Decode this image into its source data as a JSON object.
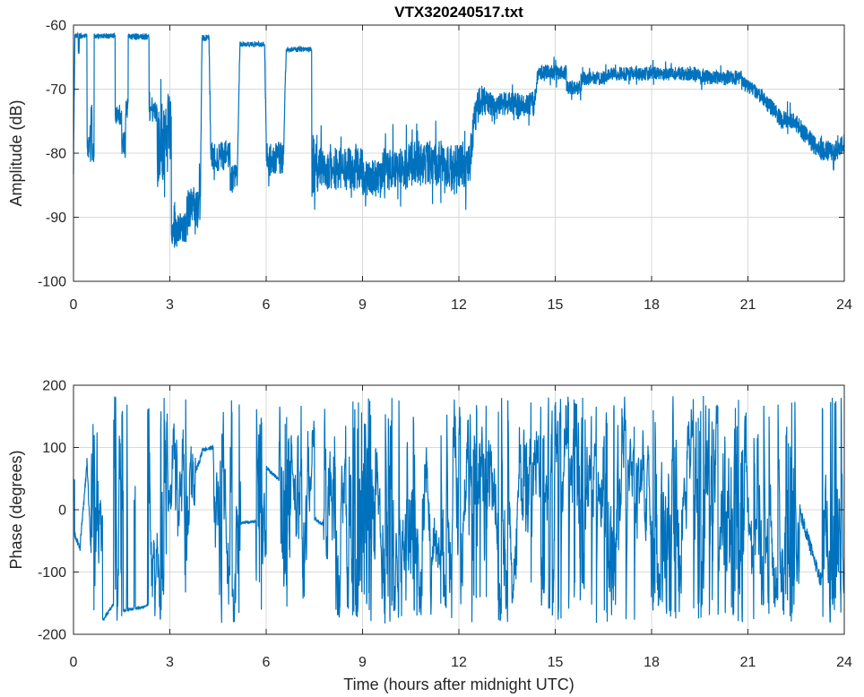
{
  "figure": {
    "window_title": "VTX320240517.txt",
    "background": "#ffffff",
    "axis_color": "#262626",
    "grid_color": "#d9d9d9",
    "line_color": "#0072BD",
    "tick_length": 6
  },
  "chart_data": [
    {
      "type": "line",
      "title": "VTX320240517.txt",
      "xlabel": "",
      "ylabel": "Amplitude (dB)",
      "xlim": [
        0,
        24
      ],
      "ylim": [
        -100,
        -60
      ],
      "xticks": [
        0,
        3,
        6,
        9,
        12,
        15,
        18,
        21,
        24
      ],
      "yticks": [
        -100,
        -90,
        -80,
        -70,
        -60
      ],
      "grid": true,
      "legend": null,
      "series": [
        {
          "name": "amplitude",
          "color": "#0072BD",
          "description": "VLF transmitter amplitude vs time; plateaus near -62 dB before 07:30 UTC, noisy -82 dB band 07:30-12:30, step to -72 dB, high band near -68 dB 14:30-21:00, decline to -80 dB by 24:00",
          "segments": [
            {
              "t0": 0.0,
              "t1": 0.04,
              "kind": "ramp",
              "from": -82,
              "to": -62,
              "spread": 1.5
            },
            {
              "t0": 0.04,
              "t1": 0.15,
              "kind": "plateau",
              "level": -61.7,
              "jit": 0.4
            },
            {
              "t0": 0.15,
              "t1": 0.18,
              "kind": "band",
              "mean": -63.5,
              "spread": 1.5
            },
            {
              "t0": 0.18,
              "t1": 0.42,
              "kind": "plateau",
              "level": -61.7,
              "jit": 0.4
            },
            {
              "t0": 0.42,
              "t1": 0.54,
              "kind": "band",
              "mean": -79.5,
              "spread": 2.2
            },
            {
              "t0": 0.54,
              "t1": 0.58,
              "kind": "band",
              "mean": -73.5,
              "spread": 1.2
            },
            {
              "t0": 0.58,
              "t1": 0.64,
              "kind": "band",
              "mean": -79.5,
              "spread": 2.2
            },
            {
              "t0": 0.64,
              "t1": 1.3,
              "kind": "plateau",
              "level": -61.7,
              "jit": 0.4
            },
            {
              "t0": 1.3,
              "t1": 1.5,
              "kind": "band",
              "mean": -74.0,
              "spread": 1.6
            },
            {
              "t0": 1.5,
              "t1": 1.62,
              "kind": "band",
              "mean": -78.5,
              "spread": 2.0
            },
            {
              "t0": 1.62,
              "t1": 1.7,
              "kind": "band",
              "mean": -72.5,
              "spread": 2.0
            },
            {
              "t0": 1.7,
              "t1": 2.35,
              "kind": "plateau",
              "level": -61.8,
              "jit": 0.5
            },
            {
              "t0": 2.35,
              "t1": 2.6,
              "kind": "band",
              "mean": -73.5,
              "spread": 1.6
            },
            {
              "t0": 2.6,
              "t1": 2.82,
              "kind": "band",
              "mean": -78.0,
              "spread": 6.5
            },
            {
              "t0": 2.82,
              "t1": 3.05,
              "kind": "band",
              "mean": -75.5,
              "spread": 5.5
            },
            {
              "t0": 3.05,
              "t1": 3.55,
              "kind": "band",
              "mean": -91.5,
              "spread": 2.4
            },
            {
              "t0": 3.55,
              "t1": 3.95,
              "kind": "band",
              "mean": -88.5,
              "spread": 3.3
            },
            {
              "t0": 3.95,
              "t1": 4.0,
              "kind": "ramp",
              "from": -88,
              "to": -62,
              "spread": 1.0
            },
            {
              "t0": 4.0,
              "t1": 4.22,
              "kind": "plateau",
              "level": -62.0,
              "jit": 0.5
            },
            {
              "t0": 4.22,
              "t1": 4.28,
              "kind": "ramp",
              "from": -62,
              "to": -81,
              "spread": 1.5
            },
            {
              "t0": 4.28,
              "t1": 4.88,
              "kind": "band",
              "mean": -80.5,
              "spread": 2.4
            },
            {
              "t0": 4.88,
              "t1": 5.1,
              "kind": "band",
              "mean": -84.0,
              "spread": 2.2
            },
            {
              "t0": 5.1,
              "t1": 5.18,
              "kind": "ramp",
              "from": -84,
              "to": -63,
              "spread": 1.0
            },
            {
              "t0": 5.18,
              "t1": 5.95,
              "kind": "plateau",
              "level": -63.0,
              "jit": 0.4
            },
            {
              "t0": 5.95,
              "t1": 6.0,
              "kind": "ramp",
              "from": -63,
              "to": -78,
              "spread": 1.0
            },
            {
              "t0": 6.0,
              "t1": 6.55,
              "kind": "band",
              "mean": -81.0,
              "spread": 2.8
            },
            {
              "t0": 6.55,
              "t1": 6.62,
              "kind": "ramp",
              "from": -78,
              "to": -64,
              "spread": 1.0
            },
            {
              "t0": 6.62,
              "t1": 7.42,
              "kind": "plateau",
              "level": -63.8,
              "jit": 0.4
            },
            {
              "t0": 7.42,
              "t1": 7.55,
              "kind": "band",
              "mean": -82.0,
              "spread": 5.0
            },
            {
              "t0": 7.55,
              "t1": 9.0,
              "kind": "band",
              "mean": -82.5,
              "spread": 3.4
            },
            {
              "t0": 9.0,
              "t1": 9.6,
              "kind": "band",
              "mean": -84.0,
              "spread": 3.0
            },
            {
              "t0": 9.6,
              "t1": 10.4,
              "kind": "band",
              "mean": -82.5,
              "spread": 3.4
            },
            {
              "t0": 10.4,
              "t1": 11.5,
              "kind": "band",
              "mean": -81.5,
              "spread": 3.6
            },
            {
              "t0": 11.5,
              "t1": 12.35,
              "kind": "band",
              "mean": -82.0,
              "spread": 3.3
            },
            {
              "t0": 12.35,
              "t1": 12.55,
              "kind": "ramp",
              "from": -80,
              "to": -73,
              "spread": 3.0
            },
            {
              "t0": 12.55,
              "t1": 12.95,
              "kind": "band",
              "mean": -71.8,
              "spread": 2.4
            },
            {
              "t0": 12.95,
              "t1": 14.35,
              "kind": "band",
              "mean": -72.3,
              "spread": 1.9
            },
            {
              "t0": 14.35,
              "t1": 14.45,
              "kind": "ramp",
              "from": -72,
              "to": -68,
              "spread": 1.2
            },
            {
              "t0": 14.45,
              "t1": 15.35,
              "kind": "band",
              "mean": -67.4,
              "spread": 1.2
            },
            {
              "t0": 15.35,
              "t1": 15.8,
              "kind": "band",
              "mean": -69.8,
              "spread": 1.1
            },
            {
              "t0": 15.8,
              "t1": 16.6,
              "kind": "band",
              "mean": -68.3,
              "spread": 1.1
            },
            {
              "t0": 16.6,
              "t1": 19.5,
              "kind": "band",
              "mean": -67.6,
              "spread": 1.1
            },
            {
              "t0": 19.5,
              "t1": 20.8,
              "kind": "band",
              "mean": -68.2,
              "spread": 1.2
            },
            {
              "t0": 20.8,
              "t1": 21.4,
              "kind": "ramp",
              "from": -69,
              "to": -71,
              "spread": 1.2
            },
            {
              "t0": 21.4,
              "t1": 22.05,
              "kind": "ramp",
              "from": -71,
              "to": -74.8,
              "spread": 1.3
            },
            {
              "t0": 22.05,
              "t1": 22.45,
              "kind": "band",
              "mean": -74.8,
              "spread": 1.4
            },
            {
              "t0": 22.45,
              "t1": 23.25,
              "kind": "ramp",
              "from": -75,
              "to": -79.8,
              "spread": 1.5
            },
            {
              "t0": 23.25,
              "t1": 23.8,
              "kind": "band",
              "mean": -79.6,
              "spread": 1.6
            },
            {
              "t0": 23.8,
              "t1": 24.0,
              "kind": "ramp",
              "from": -79.5,
              "to": -78.2,
              "spread": 1.4
            }
          ]
        }
      ]
    },
    {
      "type": "line",
      "title": "",
      "xlabel": "Time (hours after midnight UTC)",
      "ylabel": "Phase (degrees)",
      "xlim": [
        0,
        24
      ],
      "ylim": [
        -200,
        200
      ],
      "xticks": [
        0,
        3,
        6,
        9,
        12,
        15,
        18,
        21,
        24
      ],
      "yticks": [
        -200,
        -100,
        0,
        100,
        200
      ],
      "grid": true,
      "legend": null,
      "series": [
        {
          "name": "phase",
          "color": "#0072BD",
          "wrap_limit": 183,
          "description": "Phase mostly wraps chaotically across +/-180 degrees all day, with quiet coherent stretches near -160 deg (1.6-2.3 h), +95 deg (4.0-4.35 h), -20 deg (5.2-5.7 h), +50 deg (6.0-6.4 h) and a slow drift 0 to -120 deg (22.6-23.3 h)",
          "segments": [
            {
              "t0": 0.0,
              "t1": 0.03,
              "kind": "chaotic"
            },
            {
              "t0": 0.03,
              "t1": 0.2,
              "kind": "smooth",
              "from": -40,
              "to": -62,
              "noise": 7
            },
            {
              "t0": 0.2,
              "t1": 0.42,
              "kind": "smooth",
              "from": -62,
              "to": 75,
              "noise": 8
            },
            {
              "t0": 0.42,
              "t1": 0.55,
              "kind": "smooth",
              "from": 75,
              "to": -70,
              "noise": 8
            },
            {
              "t0": 0.55,
              "t1": 0.9,
              "kind": "chaotic"
            },
            {
              "t0": 0.9,
              "t1": 1.25,
              "kind": "smooth",
              "from": -178,
              "to": -152,
              "noise": 3
            },
            {
              "t0": 1.25,
              "t1": 1.55,
              "kind": "chaotic"
            },
            {
              "t0": 1.55,
              "t1": 1.65,
              "kind": "smooth",
              "from": -163,
              "to": -161,
              "noise": 2
            },
            {
              "t0": 1.65,
              "t1": 1.68,
              "kind": "chaotic"
            },
            {
              "t0": 1.68,
              "t1": 1.88,
              "kind": "smooth",
              "from": -161,
              "to": -159,
              "noise": 2
            },
            {
              "t0": 1.88,
              "t1": 1.92,
              "kind": "chaotic"
            },
            {
              "t0": 1.92,
              "t1": 2.3,
              "kind": "smooth",
              "from": -159,
              "to": -155,
              "noise": 2
            },
            {
              "t0": 2.3,
              "t1": 3.8,
              "kind": "chaotic"
            },
            {
              "t0": 3.8,
              "t1": 4.0,
              "kind": "smooth",
              "from": 60,
              "to": 90,
              "noise": 5
            },
            {
              "t0": 4.0,
              "t1": 4.35,
              "kind": "smooth",
              "from": 96,
              "to": 100,
              "noise": 3
            },
            {
              "t0": 4.35,
              "t1": 5.2,
              "kind": "chaotic"
            },
            {
              "t0": 5.2,
              "t1": 5.68,
              "kind": "smooth",
              "from": -21,
              "to": -19,
              "noise": 2
            },
            {
              "t0": 5.68,
              "t1": 6.0,
              "kind": "chaotic"
            },
            {
              "t0": 6.0,
              "t1": 6.4,
              "kind": "smooth",
              "from": 68,
              "to": 48,
              "noise": 3
            },
            {
              "t0": 6.4,
              "t1": 7.5,
              "kind": "chaotic"
            },
            {
              "t0": 7.5,
              "t1": 7.78,
              "kind": "smooth",
              "from": -14,
              "to": -24,
              "noise": 3
            },
            {
              "t0": 7.78,
              "t1": 22.6,
              "kind": "chaotic"
            },
            {
              "t0": 22.6,
              "t1": 23.3,
              "kind": "smooth",
              "from": 0,
              "to": -120,
              "noise": 12
            },
            {
              "t0": 23.3,
              "t1": 24.0,
              "kind": "chaotic"
            }
          ]
        }
      ]
    }
  ]
}
